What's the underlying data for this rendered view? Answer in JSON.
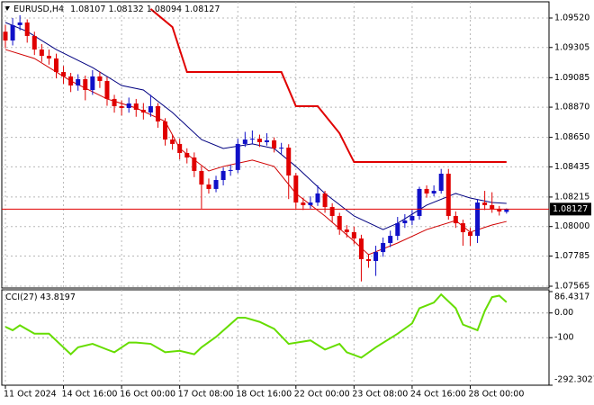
{
  "chart_data": [
    {
      "type": "candlestick",
      "title": "EURUSD,H4",
      "categories": [
        "11 Oct 2024",
        null,
        null,
        null,
        null,
        null,
        null,
        null,
        "14 Oct 16:00",
        null,
        null,
        null,
        null,
        null,
        null,
        null,
        "16 Oct 00:00",
        null,
        null,
        null,
        null,
        null,
        null,
        null,
        "17 Oct 08:00",
        null,
        null,
        null,
        null,
        null,
        null,
        null,
        "18 Oct 16:00",
        null,
        null,
        null,
        null,
        null,
        null,
        null,
        "22 Oct 00:00",
        null,
        null,
        null,
        null,
        null,
        null,
        null,
        "23 Oct 08:00",
        null,
        null,
        null,
        null,
        null,
        null,
        null,
        "24 Oct 16:00",
        null,
        null,
        null,
        null,
        null,
        null,
        null,
        "28 Oct 00:00",
        null,
        null,
        null,
        null,
        null
      ],
      "open": [
        1.0942,
        1.09356,
        1.09468,
        1.09487,
        1.09389,
        1.0929,
        1.09244,
        1.09225,
        1.09126,
        1.09094,
        1.09028,
        1.09074,
        1.08995,
        1.09094,
        1.09061,
        1.0893,
        1.08877,
        1.08864,
        1.08897,
        1.08851,
        1.08831,
        1.08877,
        1.08766,
        1.08634,
        1.08602,
        1.08536,
        1.08503,
        1.08405,
        1.08306,
        1.08274,
        1.08339,
        1.08405,
        1.08412,
        1.08602,
        1.08634,
        1.0864,
        1.08615,
        1.08628,
        1.08569,
        1.08575,
        1.08372,
        1.08175,
        1.08156,
        1.08175,
        1.08241,
        1.08142,
        1.08077,
        1.07978,
        1.07959,
        1.07913,
        1.07762,
        1.07749,
        1.07814,
        1.0788,
        1.07932,
        1.08024,
        1.08044,
        1.08077,
        1.08274,
        1.08241,
        1.0826,
        1.08385,
        1.08077,
        1.08024,
        1.07959,
        1.07932,
        1.08175,
        1.08156,
        1.08129,
        1.08107
      ],
      "high": [
        1.0947,
        1.0952,
        1.0954,
        1.0951,
        1.0942,
        1.0933,
        1.0929,
        1.0926,
        1.0917,
        1.0912,
        1.0911,
        1.091,
        1.0914,
        1.0913,
        1.0909,
        1.0896,
        1.0892,
        1.0894,
        1.0893,
        1.089,
        1.0896,
        1.089,
        1.0879,
        1.0867,
        1.0864,
        1.0857,
        1.0854,
        1.0844,
        1.0835,
        1.0837,
        1.0843,
        1.0845,
        1.0864,
        1.0869,
        1.087,
        1.0867,
        1.0868,
        1.0865,
        1.0861,
        1.086,
        1.0839,
        1.0821,
        1.0822,
        1.083,
        1.0826,
        1.0817,
        1.081,
        1.0801,
        1.08,
        1.0794,
        1.078,
        1.0786,
        1.0792,
        1.0797,
        1.0807,
        1.0809,
        1.0812,
        1.0829,
        1.083,
        1.083,
        1.0842,
        1.0842,
        1.0811,
        1.0805,
        1.0799,
        1.082,
        1.0826,
        1.0825,
        1.0815,
        1.08132
      ],
      "low": [
        1.093,
        1.0932,
        1.0943,
        1.0934,
        1.0925,
        1.092,
        1.0918,
        1.0908,
        1.0904,
        1.0898,
        1.0899,
        1.0892,
        1.0896,
        1.0901,
        1.0888,
        1.0883,
        1.0881,
        1.0883,
        1.088,
        1.0878,
        1.088,
        1.0872,
        1.0859,
        1.0856,
        1.0849,
        1.0846,
        1.0836,
        1.0813,
        1.0824,
        1.0825,
        1.083,
        1.0837,
        1.0839,
        1.0858,
        1.086,
        1.0858,
        1.0859,
        1.0854,
        1.0853,
        1.082,
        1.0813,
        1.0812,
        1.0813,
        1.0815,
        1.081,
        1.0803,
        1.0794,
        1.0792,
        1.0787,
        1.076,
        1.077,
        1.0764,
        1.0778,
        1.0785,
        1.079,
        1.0799,
        1.0801,
        1.0805,
        1.0821,
        1.0822,
        1.0824,
        1.0805,
        1.0799,
        1.0786,
        1.0786,
        1.0788,
        1.0812,
        1.081,
        1.0808,
        1.08094
      ],
      "close": [
        1.09356,
        1.09468,
        1.09487,
        1.09389,
        1.0929,
        1.09244,
        1.09225,
        1.09126,
        1.09094,
        1.09028,
        1.09074,
        1.08995,
        1.09094,
        1.09061,
        1.0893,
        1.08877,
        1.08864,
        1.08897,
        1.08851,
        1.08831,
        1.08877,
        1.08766,
        1.08634,
        1.08602,
        1.08536,
        1.08503,
        1.08405,
        1.08306,
        1.08274,
        1.08339,
        1.08405,
        1.08412,
        1.08602,
        1.08634,
        1.0864,
        1.08615,
        1.08628,
        1.08569,
        1.08575,
        1.08372,
        1.08175,
        1.08156,
        1.08175,
        1.08241,
        1.08142,
        1.08077,
        1.07978,
        1.07959,
        1.07913,
        1.07762,
        1.07749,
        1.07814,
        1.0788,
        1.07932,
        1.08024,
        1.08044,
        1.08077,
        1.08274,
        1.08241,
        1.0826,
        1.08385,
        1.08077,
        1.08024,
        1.07959,
        1.07932,
        1.08175,
        1.08156,
        1.08129,
        1.0811,
        1.08127
      ],
      "up_color": "#1010c8",
      "down_color": "#e00000",
      "price_line_color": "#e00000",
      "lines": [
        {
          "color": "#000080",
          "width": 1,
          "x": [
            0,
            3,
            7,
            12,
            16,
            19,
            23,
            27,
            30,
            34,
            37,
            40,
            44,
            48,
            52,
            54,
            58,
            62,
            64,
            67,
            69
          ],
          "values": [
            1.09487,
            1.09422,
            1.0929,
            1.09159,
            1.09028,
            1.08995,
            1.08831,
            1.08634,
            1.08569,
            1.08602,
            1.08569,
            1.08438,
            1.08241,
            1.08077,
            1.07978,
            1.08024,
            1.08156,
            1.08241,
            1.08208,
            1.08175,
            1.08169
          ]
        },
        {
          "color": "#d00000",
          "width": 1,
          "x": [
            0,
            4,
            9,
            14,
            18,
            22,
            24,
            28,
            30,
            34,
            37,
            40,
            44,
            48,
            50,
            54,
            58,
            62,
            64,
            67,
            69
          ],
          "values": [
            1.0929,
            1.09225,
            1.09061,
            1.0893,
            1.08864,
            1.08766,
            1.08569,
            1.08405,
            1.08438,
            1.08484,
            1.08438,
            1.08241,
            1.08077,
            1.07893,
            1.07795,
            1.0788,
            1.07978,
            1.08044,
            1.07959,
            1.08011,
            1.08037
          ]
        },
        {
          "color": "#e00000",
          "width": 2,
          "x": [
            20,
            23,
            25,
            38,
            40,
            43,
            46,
            48,
            69
          ],
          "values": [
            1.09586,
            1.09454,
            1.09126,
            1.09126,
            1.08877,
            1.08877,
            1.0868,
            1.0847,
            1.0847
          ]
        }
      ],
      "ylim": [
        1.07552,
        1.09638
      ],
      "yticks": [
        {
          "value": 1.0952,
          "label": "1.09520"
        },
        1.09305,
        1.09085,
        {
          "value": 1.0887,
          "label": "1.08870"
        },
        {
          "value": 1.0865,
          "label": "1.08650"
        },
        1.08435,
        1.08215,
        {
          "value": 1.08,
          "label": "1.08000"
        },
        1.07785,
        1.07565
      ],
      "grid": true
    },
    {
      "type": "line",
      "title": "CCI(27)",
      "color": "#66dd00",
      "x": [
        0,
        1,
        2,
        4,
        6,
        9,
        10,
        12,
        14,
        15,
        17,
        18,
        20,
        22,
        24,
        26,
        27,
        29,
        32,
        33,
        35,
        37,
        39,
        42,
        44,
        46,
        47,
        49,
        51,
        54,
        56,
        57,
        59,
        60,
        62,
        63,
        65,
        66,
        67,
        68,
        69
      ],
      "values": [
        -56,
        -70,
        -50,
        -84,
        -84,
        -167,
        -139,
        -125,
        -148,
        -159,
        -120,
        -120,
        -125,
        -159,
        -153,
        -167,
        -139,
        -97,
        -19,
        -19,
        -36,
        -64,
        -125,
        -111,
        -148,
        -125,
        -159,
        -181,
        -139,
        -84,
        -42,
        19,
        42,
        75,
        19,
        -47,
        -70,
        8,
        64,
        70,
        43.8197
      ],
      "ylim": [
        -292.3027,
        86.4317
      ],
      "yticks": [
        86.4317,
        {
          "value": 0,
          "label": "0.00"
        },
        -100,
        -292.3027
      ]
    }
  ]
}
